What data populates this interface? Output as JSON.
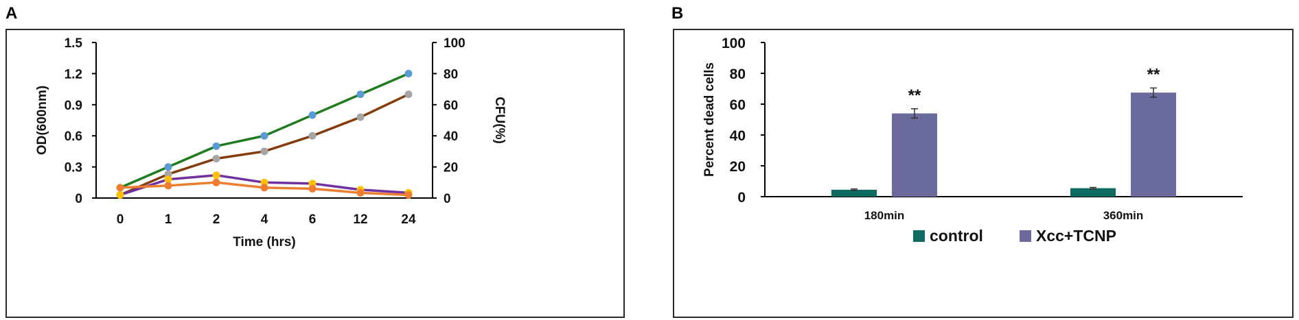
{
  "panels": {
    "a_label": "A",
    "b_label": "B"
  },
  "chart_data": [
    {
      "type": "line",
      "title": "",
      "xlabel": "Time (hrs)",
      "ylabel": "OD(600nm)",
      "y2label": "CFU(%)",
      "categories": [
        "0",
        "1",
        "2",
        "4",
        "6",
        "12",
        "24"
      ],
      "ylim": [
        0,
        1.5
      ],
      "yticks": [
        "0",
        "0.3",
        "0.6",
        "0.9",
        "1.2",
        "1.5"
      ],
      "y2lim": [
        0,
        100
      ],
      "y2ticks": [
        "0",
        "20",
        "40",
        "60",
        "80",
        "100"
      ],
      "grid": false,
      "series": [
        {
          "axis": "left",
          "values": [
            0.1,
            0.3,
            0.5,
            0.6,
            0.8,
            1.0,
            1.2
          ],
          "line_color": "#1e7b1e",
          "marker_color": "#5b9bd5"
        },
        {
          "axis": "left",
          "values": [
            0.03,
            0.23,
            0.38,
            0.45,
            0.6,
            0.78,
            1.0
          ],
          "line_color": "#843c0c",
          "marker_color": "#a5a5a5"
        },
        {
          "axis": "left",
          "values": [
            0.03,
            0.18,
            0.22,
            0.15,
            0.14,
            0.08,
            0.05
          ],
          "line_color": "#7030a0",
          "marker_color": "#ffc000"
        },
        {
          "axis": "left",
          "values": [
            0.1,
            0.12,
            0.15,
            0.1,
            0.09,
            0.05,
            0.03
          ],
          "line_color": "#ed7d31",
          "marker_color": "#ed7d31"
        }
      ]
    },
    {
      "type": "bar",
      "title": "",
      "xlabel": "",
      "ylabel": "Percent dead cells",
      "categories": [
        "180min",
        "360min"
      ],
      "ylim": [
        0,
        100
      ],
      "yticks": [
        "0",
        "20",
        "40",
        "60",
        "80",
        "100"
      ],
      "grid": false,
      "legend_position": "bottom",
      "series": [
        {
          "name": "control",
          "values": [
            4.5,
            5.5
          ],
          "errors": [
            0.5,
            0.5
          ],
          "color": "#0f6b5f"
        },
        {
          "name": "Xcc+TCNP",
          "values": [
            54,
            67.5
          ],
          "errors": [
            3,
            3
          ],
          "color": "#6a6a9c"
        }
      ],
      "annotations": [
        {
          "category": "180min",
          "series": "Xcc+TCNP",
          "text": "**"
        },
        {
          "category": "360min",
          "series": "Xcc+TCNP",
          "text": "**"
        }
      ]
    }
  ]
}
